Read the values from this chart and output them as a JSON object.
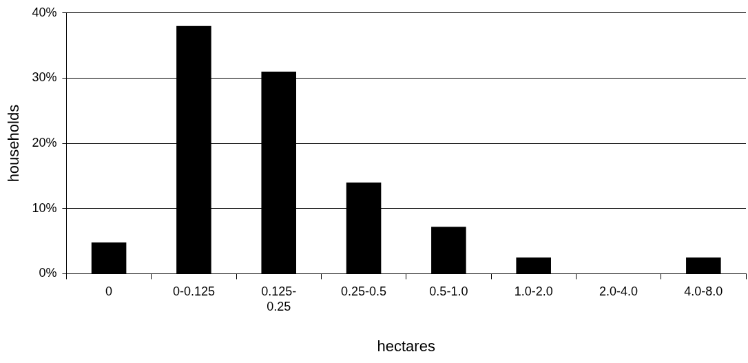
{
  "chart_data": {
    "type": "bar",
    "xlabel": "hectares",
    "ylabel": "households",
    "categories": [
      "0",
      "0-0.125",
      "0.125-0.25",
      "0.25-0.5",
      "0.5-1.0",
      "1.0-2.0",
      "2.0-4.0",
      "4.0-8.0"
    ],
    "values": [
      4.8,
      38,
      31,
      14,
      7.2,
      2.5,
      0,
      2.5
    ],
    "color": "#000000",
    "ylim": [
      0,
      40
    ],
    "yticks": [
      {
        "value": 0,
        "label": "0%"
      },
      {
        "value": 10,
        "label": "10%"
      },
      {
        "value": 20,
        "label": "20%"
      },
      {
        "value": 30,
        "label": "30%"
      },
      {
        "value": 40,
        "label": "40%"
      }
    ],
    "grid": "y",
    "legend": false
  }
}
